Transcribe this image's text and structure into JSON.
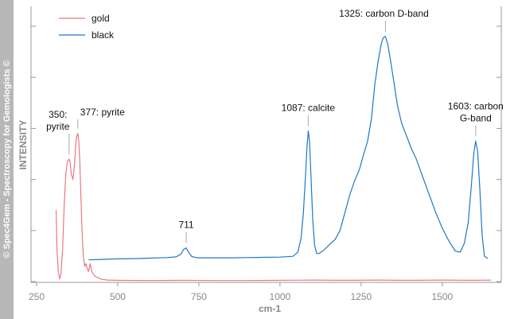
{
  "watermark": "© Spec4Gem - Spectroscopy for Gemologists ©",
  "chart_data": {
    "type": "line",
    "title": "",
    "xlabel": "cm-1",
    "ylabel": "INTENSITY",
    "xlim": [
      250,
      1650
    ],
    "ylim": [
      0,
      100
    ],
    "x_ticks": [
      250,
      500,
      750,
      1000,
      1250,
      1500
    ],
    "grid": false,
    "legend_position": "top-left",
    "colors": {
      "gold": "#e87a80",
      "black": "#1f77c8"
    },
    "series": [
      {
        "name": "gold",
        "color": "#e87a80",
        "points": [
          [
            310,
            28
          ],
          [
            313,
            12
          ],
          [
            317,
            4
          ],
          [
            321,
            1
          ],
          [
            325,
            3
          ],
          [
            330,
            12
          ],
          [
            335,
            30
          ],
          [
            340,
            42
          ],
          [
            345,
            47
          ],
          [
            350,
            48
          ],
          [
            353,
            47
          ],
          [
            357,
            42
          ],
          [
            362,
            40
          ],
          [
            367,
            46
          ],
          [
            372,
            56
          ],
          [
            377,
            58
          ],
          [
            380,
            55
          ],
          [
            383,
            48
          ],
          [
            386,
            35
          ],
          [
            390,
            20
          ],
          [
            394,
            10
          ],
          [
            398,
            6
          ],
          [
            402,
            7
          ],
          [
            406,
            5
          ],
          [
            410,
            4
          ],
          [
            415,
            7
          ],
          [
            420,
            4
          ],
          [
            425,
            3
          ],
          [
            430,
            2
          ],
          [
            440,
            1.5
          ],
          [
            450,
            0.9
          ],
          [
            470,
            0.6
          ],
          [
            500,
            0.5
          ],
          [
            600,
            0.4
          ],
          [
            700,
            0.5
          ],
          [
            800,
            0.4
          ],
          [
            900,
            0.4
          ],
          [
            1000,
            0.5
          ],
          [
            1100,
            0.6
          ],
          [
            1200,
            0.5
          ],
          [
            1300,
            0.6
          ],
          [
            1400,
            0.5
          ],
          [
            1500,
            0.6
          ],
          [
            1600,
            0.5
          ],
          [
            1650,
            0.6
          ]
        ]
      },
      {
        "name": "black",
        "color": "#1f77c8",
        "points": [
          [
            410,
            8.5
          ],
          [
            450,
            8.7
          ],
          [
            500,
            8.9
          ],
          [
            550,
            9.0
          ],
          [
            600,
            9.2
          ],
          [
            650,
            9.4
          ],
          [
            680,
            9.7
          ],
          [
            695,
            10.8
          ],
          [
            703,
            12.6
          ],
          [
            711,
            13.2
          ],
          [
            718,
            11.6
          ],
          [
            728,
            9.8
          ],
          [
            745,
            9.3
          ],
          [
            800,
            9.3
          ],
          [
            850,
            9.3
          ],
          [
            900,
            9.4
          ],
          [
            950,
            9.5
          ],
          [
            1000,
            9.6
          ],
          [
            1040,
            9.9
          ],
          [
            1055,
            11.5
          ],
          [
            1065,
            17
          ],
          [
            1072,
            27
          ],
          [
            1078,
            40
          ],
          [
            1083,
            52
          ],
          [
            1087,
            59
          ],
          [
            1091,
            55
          ],
          [
            1096,
            40
          ],
          [
            1101,
            24
          ],
          [
            1107,
            14
          ],
          [
            1113,
            11
          ],
          [
            1120,
            11
          ],
          [
            1135,
            12.3
          ],
          [
            1150,
            14.2
          ],
          [
            1170,
            16.5
          ],
          [
            1185,
            20
          ],
          [
            1200,
            27
          ],
          [
            1215,
            34
          ],
          [
            1230,
            39.5
          ],
          [
            1245,
            44
          ],
          [
            1258,
            50
          ],
          [
            1270,
            55
          ],
          [
            1282,
            64
          ],
          [
            1292,
            77
          ],
          [
            1302,
            86
          ],
          [
            1312,
            93
          ],
          [
            1318,
            95.5
          ],
          [
            1325,
            96
          ],
          [
            1332,
            93
          ],
          [
            1340,
            87
          ],
          [
            1350,
            79
          ],
          [
            1362,
            69
          ],
          [
            1375,
            62
          ],
          [
            1390,
            57
          ],
          [
            1405,
            52
          ],
          [
            1420,
            48
          ],
          [
            1440,
            41
          ],
          [
            1460,
            34
          ],
          [
            1480,
            27
          ],
          [
            1500,
            21
          ],
          [
            1520,
            16
          ],
          [
            1540,
            12
          ],
          [
            1555,
            11.5
          ],
          [
            1568,
            15
          ],
          [
            1580,
            23
          ],
          [
            1590,
            38
          ],
          [
            1597,
            50
          ],
          [
            1603,
            55
          ],
          [
            1609,
            51
          ],
          [
            1616,
            36
          ],
          [
            1623,
            18
          ],
          [
            1630,
            10
          ],
          [
            1640,
            9
          ]
        ]
      }
    ],
    "annotations": [
      {
        "lines": [
          "350:",
          "pyrite"
        ],
        "x": 350,
        "y": 48
      },
      {
        "lines": [
          "377: pyrite"
        ],
        "x": 377,
        "y": 58
      },
      {
        "lines": [
          "711"
        ],
        "x": 711,
        "y": 13.2
      },
      {
        "lines": [
          "1087: calcite"
        ],
        "x": 1087,
        "y": 59
      },
      {
        "lines": [
          "1325: carbon D-band"
        ],
        "x": 1325,
        "y": 96
      },
      {
        "lines": [
          "1603: carbon",
          "G-band"
        ],
        "x": 1603,
        "y": 55
      }
    ]
  }
}
